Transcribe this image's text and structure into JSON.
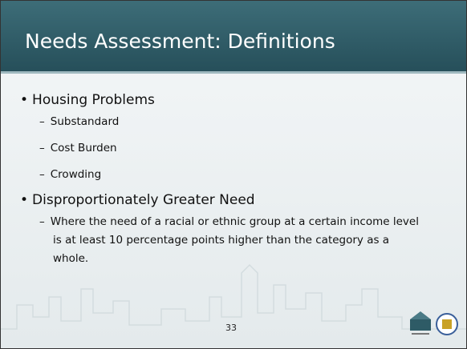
{
  "header": {
    "title": "Needs Assessment: Definitions"
  },
  "bullets": [
    {
      "text": "Housing Problems",
      "items": [
        "Substandard",
        "Cost Burden",
        "Crowding"
      ]
    },
    {
      "text": "Disproportionately Greater Need",
      "items": [
        "Where the need of a racial or ethnic group at a certain income level is at least 10 percentage points higher than the category as a whole."
      ]
    }
  ],
  "page_number": "33"
}
